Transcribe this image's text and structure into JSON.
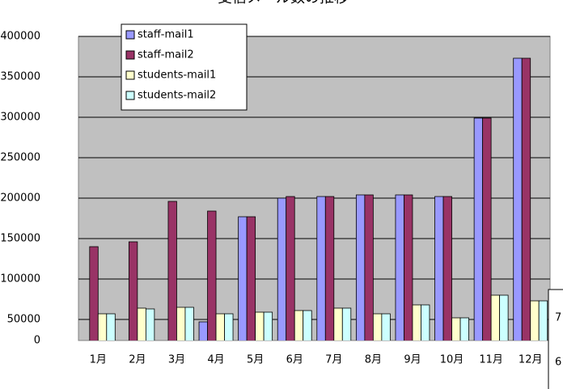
{
  "chart_data": {
    "type": "bar",
    "title": "受信メール数の推移",
    "categories": [
      "1月",
      "2月",
      "3月",
      "4月",
      "5月",
      "6月",
      "7月",
      "8月",
      "9月",
      "10月",
      "11月",
      "12月"
    ],
    "series": [
      {
        "name": "staff-mail1",
        "color": "#9999ff",
        "values": [
          0,
          0,
          0,
          47000,
          177000,
          200000,
          202000,
          204000,
          204000,
          202000,
          299000,
          373000
        ]
      },
      {
        "name": "staff-mail2",
        "color": "#993366",
        "values": [
          140000,
          146000,
          196000,
          184000,
          177000,
          202000,
          202000,
          204000,
          204000,
          202000,
          299000,
          373000
        ]
      },
      {
        "name": "students-mail1",
        "color": "#ffffcc",
        "values": [
          57000,
          64000,
          65000,
          57000,
          59000,
          61000,
          64000,
          57000,
          68000,
          52000,
          80000,
          73000
        ]
      },
      {
        "name": "students-mail2",
        "color": "#ccffff",
        "values": [
          57000,
          63000,
          65000,
          57000,
          59000,
          61000,
          64000,
          57000,
          68000,
          52000,
          80000,
          73000
        ]
      }
    ],
    "ylim": [
      0,
      400000
    ],
    "yticks": [
      0,
      50000,
      100000,
      150000,
      200000,
      250000,
      300000,
      350000,
      400000
    ],
    "grid": true,
    "legend": "top-left",
    "side_labels": [
      "7",
      "6"
    ]
  }
}
